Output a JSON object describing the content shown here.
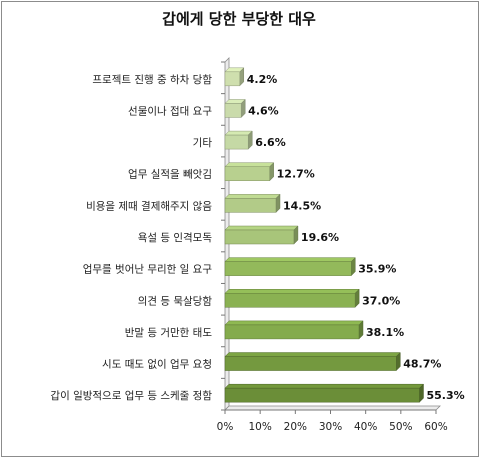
{
  "chart_data": {
    "type": "bar",
    "orientation": "horizontal",
    "title": "갑에게 당한 부당한 대우",
    "categories": [
      "프로젝트 진행 중 하차 당함",
      "선물이나 접대 요구",
      "기타",
      "업무 실적을 빼앗김",
      "비용을 제때 결제해주지 않음",
      "욕설 등 인격모독",
      "업무를 벗어난 무리한 일 요구",
      "의견 등 묵살당함",
      "반말 등 거만한 태도",
      "시도 때도 없이 업무 요청",
      "갑이 일방적으로 업무 등 스케줄 정함"
    ],
    "values": [
      4.2,
      4.6,
      6.6,
      12.7,
      14.5,
      19.6,
      35.9,
      37.0,
      38.1,
      48.7,
      55.3
    ],
    "value_labels": [
      "4.2%",
      "4.6%",
      "6.6%",
      "12.7%",
      "14.5%",
      "19.6%",
      "35.9%",
      "37.0%",
      "38.1%",
      "48.7%",
      "55.3%"
    ],
    "x_ticks": [
      "0%",
      "10%",
      "20%",
      "30%",
      "40%",
      "50%",
      "60%"
    ],
    "xlim": [
      0,
      60
    ],
    "xlabel": "",
    "ylabel": "",
    "grid": false,
    "legend": "none",
    "bar_colors": [
      "#cfdfae",
      "#cadbab",
      "#c5d9a5",
      "#b8d08f",
      "#b2cb88",
      "#a8c57a",
      "#93b95b",
      "#8ab152",
      "#84ab4c",
      "#74993f",
      "#6b8e38"
    ]
  }
}
